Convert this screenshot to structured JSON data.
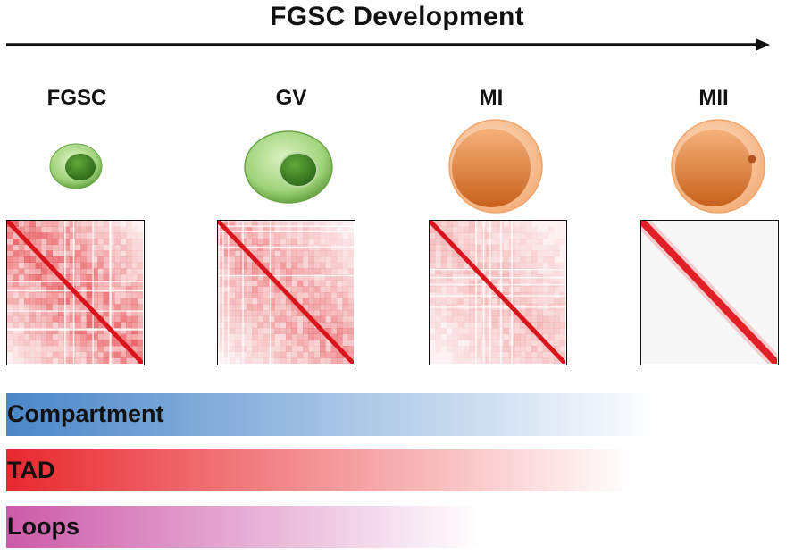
{
  "title": "FGSC Development",
  "stages": [
    {
      "label": "FGSC",
      "cell": "small-green-cell-icon",
      "map_texture": "dense"
    },
    {
      "label": "GV",
      "cell": "large-green-cell-icon",
      "map_texture": "medium"
    },
    {
      "label": "MI",
      "cell": "orange-oocyte-icon",
      "map_texture": "light"
    },
    {
      "label": "MII",
      "cell": "orange-oocyte-with-polar-body-icon",
      "map_texture": "diagonal-only"
    }
  ],
  "features": [
    {
      "label": "Compartment",
      "color": "#4a86c8",
      "fade_fraction": 0.83
    },
    {
      "label": "TAD",
      "color": "#e8282e",
      "fade_fraction": 0.79
    },
    {
      "label": "Loops",
      "color": "#cc5aa8",
      "fade_fraction": 0.6
    }
  ]
}
